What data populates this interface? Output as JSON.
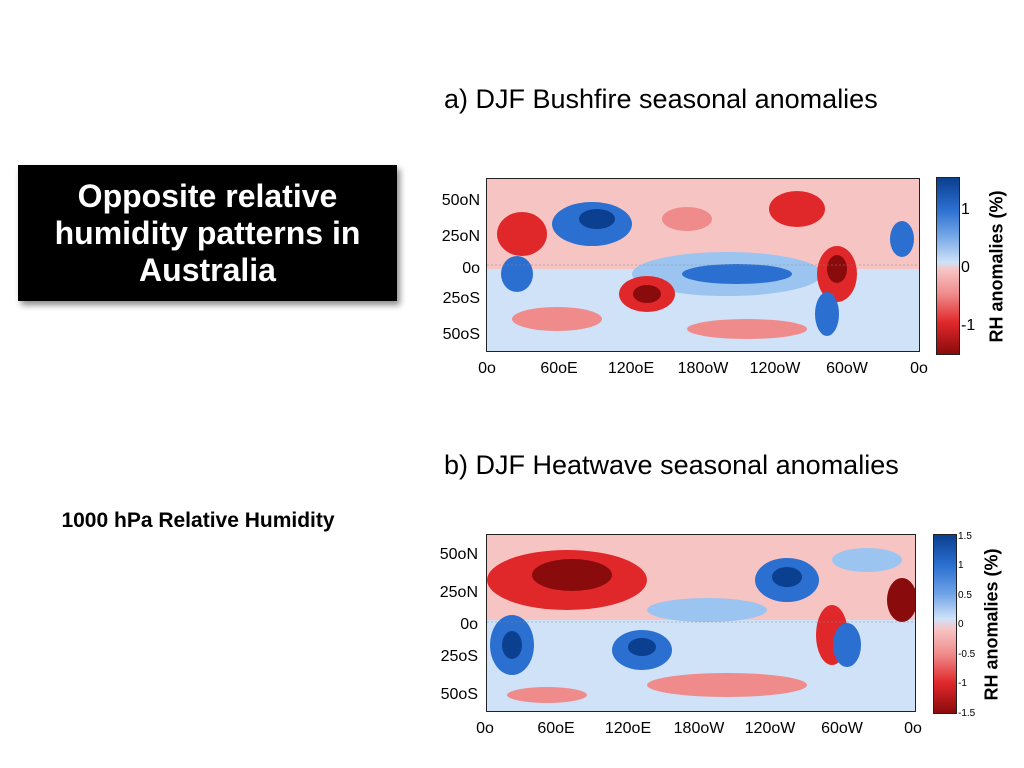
{
  "callout": "Opposite relative humidity patterns in Australia",
  "side_label": "1000 hPa Relative Humidity",
  "panels": [
    {
      "title": "a) DJF Bushfire seasonal anomalies",
      "lat_labels": [
        "50oN",
        "25oN",
        "0o",
        "25oS",
        "50oS"
      ],
      "lon_labels": [
        "0o",
        "60oE",
        "120oE",
        "180oW",
        "120oW",
        "60oW",
        "0o"
      ],
      "colorbar": {
        "label": "RH anomalies (%)",
        "ticks": [
          "1",
          "0",
          "-1"
        ],
        "range": [
          -1.5,
          1.5
        ]
      }
    },
    {
      "title": "b) DJF Heatwave seasonal anomalies",
      "lat_labels": [
        "50oN",
        "25oN",
        "0o",
        "25oS",
        "50oS"
      ],
      "lon_labels": [
        "0o",
        "60oE",
        "120oE",
        "180oW",
        "120oW",
        "60oW",
        "0o"
      ],
      "colorbar": {
        "label": "RH anomalies (%)",
        "ticks": [
          "1.5",
          "1",
          "0.5",
          "0",
          "-0.5",
          "-1",
          "-1.5"
        ],
        "range": [
          -1.5,
          1.5
        ]
      }
    }
  ],
  "colors": {
    "dark_blue": "#0b3f8f",
    "blue": "#2b6fd0",
    "light_blue": "#9cc4f0",
    "pale_blue": "#cfe2f8",
    "pale_red": "#f7c4c4",
    "light_red": "#f08b8b",
    "red": "#e0282b",
    "dark_red": "#8a0b0b"
  }
}
